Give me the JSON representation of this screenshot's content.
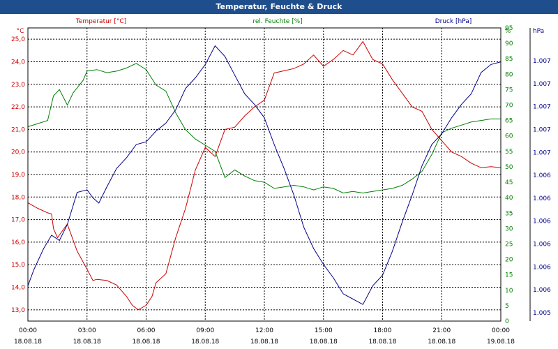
{
  "window": {
    "title": "Temperatur, Feuchte & Druck"
  },
  "chart_data": {
    "type": "line",
    "title": "Temperatur, Feuchte & Druck",
    "grid": true,
    "x_ticks": [
      {
        "time": "00:00",
        "date": "18.08.18"
      },
      {
        "time": "03:00",
        "date": "18.08.18"
      },
      {
        "time": "06:00",
        "date": "18.08.18"
      },
      {
        "time": "09:00",
        "date": "18.08.18"
      },
      {
        "time": "12:00",
        "date": "18.08.18"
      },
      {
        "time": "15:00",
        "date": "18.08.18"
      },
      {
        "time": "18:00",
        "date": "18.08.18"
      },
      {
        "time": "21:00",
        "date": "18.08.18"
      },
      {
        "time": "00:00",
        "date": "19.08.18"
      }
    ],
    "x_range_hours": [
      0,
      24
    ],
    "axes": {
      "temperature": {
        "label": "Temperatur [°C]",
        "unit": "°C",
        "range": [
          12.5,
          25.5
        ],
        "ticks": [
          "13,0",
          "14,0",
          "15,0",
          "16,0",
          "17,0",
          "18,0",
          "19,0",
          "20,0",
          "21,0",
          "22,0",
          "23,0",
          "24,0",
          "25,0"
        ],
        "color": "#cc0000"
      },
      "humidity": {
        "label": "rel. Feuchte [%]",
        "unit": "%",
        "range": [
          0,
          95
        ],
        "ticks": [
          "0",
          "5",
          "10",
          "15",
          "20",
          "25",
          "30",
          "35",
          "40",
          "45",
          "50",
          "55",
          "60",
          "65",
          "70",
          "75",
          "80",
          "85",
          "90",
          "95"
        ],
        "color": "#008000"
      },
      "pressure": {
        "label": "Druck [hPa]",
        "unit": "hPa",
        "ticks": [
          "1.005",
          "1.006",
          "1.006",
          "1.006",
          "1.006",
          "1.006",
          "1.006",
          "1.007",
          "1.007",
          "1.007",
          "1.007",
          "1.007"
        ],
        "color": "#00008b"
      }
    },
    "series": [
      {
        "key": "temperature",
        "label": "Temperatur [°C]",
        "color": "#cc0000",
        "axis": "temperature",
        "points": [
          [
            0,
            17.75
          ],
          [
            0.5,
            17.5
          ],
          [
            1,
            17.3
          ],
          [
            1.2,
            17.25
          ],
          [
            1.3,
            16.6
          ],
          [
            1.5,
            16.2
          ],
          [
            2,
            16.8
          ],
          [
            2.5,
            15.6
          ],
          [
            3,
            14.8
          ],
          [
            3.3,
            14.3
          ],
          [
            3.5,
            14.35
          ],
          [
            4,
            14.3
          ],
          [
            4.5,
            14.1
          ],
          [
            5,
            13.6
          ],
          [
            5.3,
            13.2
          ],
          [
            5.6,
            13.0
          ],
          [
            6,
            13.2
          ],
          [
            6.3,
            13.6
          ],
          [
            6.5,
            14.2
          ],
          [
            7,
            14.6
          ],
          [
            7.5,
            16.2
          ],
          [
            8,
            17.5
          ],
          [
            8.5,
            19.2
          ],
          [
            9,
            20.2
          ],
          [
            9.5,
            19.8
          ],
          [
            10,
            21.0
          ],
          [
            10.5,
            21.1
          ],
          [
            11,
            21.6
          ],
          [
            11.5,
            22.0
          ],
          [
            12,
            22.3
          ],
          [
            12.5,
            23.5
          ],
          [
            13,
            23.6
          ],
          [
            13.5,
            23.7
          ],
          [
            14,
            23.9
          ],
          [
            14.5,
            24.3
          ],
          [
            15,
            23.8
          ],
          [
            15.5,
            24.1
          ],
          [
            16,
            24.5
          ],
          [
            16.5,
            24.3
          ],
          [
            17,
            24.9
          ],
          [
            17.5,
            24.1
          ],
          [
            18,
            23.9
          ],
          [
            18.5,
            23.2
          ],
          [
            19,
            22.6
          ],
          [
            19.5,
            22.0
          ],
          [
            20,
            21.8
          ],
          [
            20.5,
            21.0
          ],
          [
            21,
            20.5
          ],
          [
            21.5,
            20.0
          ],
          [
            22,
            19.8
          ],
          [
            22.5,
            19.5
          ],
          [
            23,
            19.3
          ],
          [
            23.5,
            19.35
          ],
          [
            24,
            19.3
          ]
        ]
      },
      {
        "key": "humidity",
        "label": "rel. Feuchte [%]",
        "color": "#008000",
        "axis": "humidity",
        "points": [
          [
            0,
            63
          ],
          [
            0.5,
            64
          ],
          [
            1,
            65
          ],
          [
            1.3,
            73
          ],
          [
            1.6,
            75
          ],
          [
            2,
            70
          ],
          [
            2.3,
            74
          ],
          [
            2.8,
            78
          ],
          [
            3,
            81
          ],
          [
            3.5,
            81.5
          ],
          [
            4,
            80.5
          ],
          [
            4.5,
            81
          ],
          [
            5,
            82
          ],
          [
            5.5,
            83.5
          ],
          [
            6,
            81.5
          ],
          [
            6.5,
            76.5
          ],
          [
            7,
            74.5
          ],
          [
            7.5,
            67.5
          ],
          [
            8,
            62
          ],
          [
            8.5,
            59
          ],
          [
            9,
            57
          ],
          [
            9.5,
            55
          ],
          [
            10,
            46.5
          ],
          [
            10.5,
            49
          ],
          [
            11,
            47
          ],
          [
            11.5,
            45.5
          ],
          [
            12,
            45
          ],
          [
            12.5,
            43
          ],
          [
            13,
            43.5
          ],
          [
            13.5,
            44
          ],
          [
            14,
            43.5
          ],
          [
            14.5,
            42.5
          ],
          [
            15,
            43.5
          ],
          [
            15.5,
            43
          ],
          [
            16,
            41.5
          ],
          [
            16.5,
            42
          ],
          [
            17,
            41.5
          ],
          [
            17.5,
            42
          ],
          [
            18,
            42.5
          ],
          [
            18.5,
            43
          ],
          [
            19,
            44
          ],
          [
            19.5,
            46
          ],
          [
            20,
            48.5
          ],
          [
            20.5,
            54
          ],
          [
            21,
            61
          ],
          [
            21.5,
            62.5
          ],
          [
            22,
            63.5
          ],
          [
            22.5,
            64.5
          ],
          [
            23,
            65
          ],
          [
            23.5,
            65.5
          ],
          [
            24,
            65.5
          ]
        ]
      },
      {
        "key": "pressure",
        "label": "Druck [hPa]",
        "color": "#00008b",
        "axis": "pressure",
        "relative_level_0_1": true,
        "points": [
          [
            0,
            0.08
          ],
          [
            0.3,
            0.14
          ],
          [
            0.8,
            0.22
          ],
          [
            1.2,
            0.27
          ],
          [
            1.6,
            0.25
          ],
          [
            2,
            0.31
          ],
          [
            2.5,
            0.43
          ],
          [
            3,
            0.44
          ],
          [
            3.3,
            0.41
          ],
          [
            3.6,
            0.39
          ],
          [
            4,
            0.45
          ],
          [
            4.5,
            0.52
          ],
          [
            5,
            0.56
          ],
          [
            5.5,
            0.61
          ],
          [
            6,
            0.62
          ],
          [
            6.5,
            0.66
          ],
          [
            7,
            0.69
          ],
          [
            7.5,
            0.74
          ],
          [
            8,
            0.82
          ],
          [
            8.5,
            0.86
          ],
          [
            9,
            0.91
          ],
          [
            9.5,
            0.98
          ],
          [
            10,
            0.94
          ],
          [
            10.5,
            0.87
          ],
          [
            11,
            0.8
          ],
          [
            11.5,
            0.76
          ],
          [
            12,
            0.71
          ],
          [
            12.5,
            0.61
          ],
          [
            13,
            0.52
          ],
          [
            13.5,
            0.42
          ],
          [
            14,
            0.3
          ],
          [
            14.5,
            0.22
          ],
          [
            15,
            0.16
          ],
          [
            15.5,
            0.11
          ],
          [
            16,
            0.05
          ],
          [
            16.5,
            0.03
          ],
          [
            17,
            0.01
          ],
          [
            17.5,
            0.08
          ],
          [
            18,
            0.12
          ],
          [
            18.5,
            0.21
          ],
          [
            19,
            0.32
          ],
          [
            19.5,
            0.42
          ],
          [
            20,
            0.53
          ],
          [
            20.5,
            0.61
          ],
          [
            21,
            0.65
          ],
          [
            21.5,
            0.71
          ],
          [
            22,
            0.76
          ],
          [
            22.5,
            0.8
          ],
          [
            23,
            0.88
          ],
          [
            23.5,
            0.91
          ],
          [
            24,
            0.92
          ]
        ]
      }
    ]
  }
}
